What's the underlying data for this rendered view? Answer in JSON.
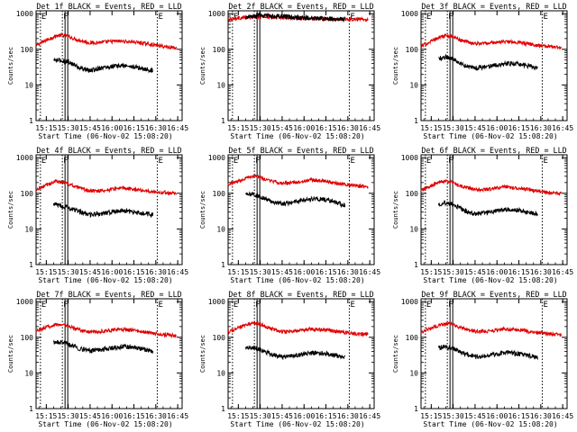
{
  "chart_data": [
    {
      "type": "line",
      "title": "Det 1f BLACK = Events, RED = LLD",
      "xlabel": "Start Time (06-Nov-02 15:08:20)",
      "ylabel": "Counts/sec",
      "x_ticks": [
        "15:15",
        "15:30",
        "15:45",
        "16:00",
        "16:15",
        "16:30",
        "16:45"
      ],
      "y_ticks": [
        "1",
        "10",
        "100",
        "1000"
      ],
      "y_scale": "log",
      "ylim": [
        1,
        1200
      ],
      "xlim": [
        "15:08",
        "16:48"
      ],
      "markers": [
        {
          "label": "E",
          "x": "15:11"
        },
        {
          "label": "F",
          "x": "15:26"
        },
        {
          "label": "E",
          "x": "16:31"
        }
      ],
      "series": [
        {
          "color": "#e00000",
          "x": [
            "15:08",
            "15:15",
            "15:22",
            "15:28",
            "15:35",
            "15:45",
            "15:55",
            "16:05",
            "16:15",
            "16:25",
            "16:35",
            "16:44"
          ],
          "y": [
            130,
            180,
            240,
            250,
            190,
            150,
            160,
            170,
            160,
            140,
            120,
            110
          ]
        },
        {
          "color": "#000000",
          "x": [
            "15:20",
            "15:25",
            "15:30",
            "15:38",
            "15:45",
            "15:52",
            "16:00",
            "16:08",
            "16:15",
            "16:22",
            "16:28"
          ],
          "y": [
            50,
            48,
            45,
            30,
            25,
            30,
            33,
            35,
            32,
            28,
            25
          ]
        }
      ]
    },
    {
      "type": "line",
      "title": "Det 2f BLACK = Events, RED = LLD",
      "xlabel": "Start Time (06-Nov-02 15:08:20)",
      "ylabel": "Counts/sec",
      "x_ticks": [
        "15:15",
        "15:30",
        "15:45",
        "16:00",
        "16:15",
        "16:30",
        "16:45"
      ],
      "y_ticks": [
        "1",
        "10",
        "100",
        "1000"
      ],
      "y_scale": "log",
      "ylim": [
        1,
        1200
      ],
      "xlim": [
        "15:08",
        "16:48"
      ],
      "markers": [
        {
          "label": "E",
          "x": "15:11"
        },
        {
          "label": "F",
          "x": "15:26"
        },
        {
          "label": "E",
          "x": "16:31"
        }
      ],
      "series": [
        {
          "color": "#e00000",
          "x": [
            "15:08",
            "15:20",
            "15:30",
            "15:45",
            "16:00",
            "16:15",
            "16:30",
            "16:44"
          ],
          "y": [
            700,
            780,
            820,
            780,
            730,
            710,
            700,
            700
          ]
        },
        {
          "color": "#000000",
          "x": [
            "15:20",
            "15:30",
            "15:45",
            "16:00",
            "16:15",
            "16:28"
          ],
          "y": [
            750,
            900,
            820,
            760,
            720,
            710
          ]
        }
      ]
    },
    {
      "type": "line",
      "title": "Det 3f BLACK = Events, RED = LLD",
      "xlabel": "Start Time (06-Nov-02 15:08:20)",
      "ylabel": "Counts/sec",
      "x_ticks": [
        "15:15",
        "15:30",
        "15:45",
        "16:00",
        "16:15",
        "16:30",
        "16:45"
      ],
      "y_ticks": [
        "1",
        "10",
        "100",
        "1000"
      ],
      "y_scale": "log",
      "ylim": [
        1,
        1200
      ],
      "xlim": [
        "15:08",
        "16:48"
      ],
      "markers": [
        {
          "label": "E",
          "x": "15:11"
        },
        {
          "label": "F",
          "x": "15:26"
        },
        {
          "label": "E",
          "x": "16:31"
        }
      ],
      "series": [
        {
          "color": "#e00000",
          "x": [
            "15:08",
            "15:15",
            "15:22",
            "15:28",
            "15:35",
            "15:45",
            "15:55",
            "16:05",
            "16:15",
            "16:25",
            "16:35",
            "16:44"
          ],
          "y": [
            120,
            170,
            230,
            240,
            180,
            145,
            150,
            165,
            155,
            135,
            120,
            115
          ]
        },
        {
          "color": "#000000",
          "x": [
            "15:20",
            "15:25",
            "15:30",
            "15:38",
            "15:45",
            "15:52",
            "16:00",
            "16:08",
            "16:15",
            "16:22",
            "16:28"
          ],
          "y": [
            55,
            60,
            55,
            35,
            30,
            32,
            36,
            40,
            38,
            34,
            30
          ]
        }
      ]
    },
    {
      "type": "line",
      "title": "Det 4f BLACK = Events, RED = LLD",
      "xlabel": "Start Time (06-Nov-02 15:08:20)",
      "ylabel": "Counts/sec",
      "x_ticks": [
        "15:15",
        "15:30",
        "15:45",
        "16:00",
        "16:15",
        "16:30",
        "16:45"
      ],
      "y_ticks": [
        "1",
        "10",
        "100",
        "1000"
      ],
      "y_scale": "log",
      "ylim": [
        1,
        1200
      ],
      "xlim": [
        "15:08",
        "16:48"
      ],
      "markers": [
        {
          "label": "E",
          "x": "15:11"
        },
        {
          "label": "F",
          "x": "15:26"
        },
        {
          "label": "E",
          "x": "16:31"
        }
      ],
      "series": [
        {
          "color": "#e00000",
          "x": [
            "15:08",
            "15:15",
            "15:22",
            "15:28",
            "15:35",
            "15:45",
            "15:55",
            "16:05",
            "16:15",
            "16:25",
            "16:35",
            "16:44"
          ],
          "y": [
            120,
            170,
            220,
            200,
            150,
            115,
            120,
            140,
            130,
            115,
            105,
            100
          ]
        },
        {
          "color": "#000000",
          "x": [
            "15:20",
            "15:25",
            "15:30",
            "15:38",
            "15:45",
            "15:52",
            "16:00",
            "16:08",
            "16:15",
            "16:22",
            "16:28"
          ],
          "y": [
            50,
            45,
            40,
            30,
            25,
            27,
            30,
            32,
            30,
            27,
            25
          ]
        }
      ]
    },
    {
      "type": "line",
      "title": "Det 5f BLACK = Events, RED = LLD",
      "xlabel": "Start Time (06-Nov-02 15:08:20)",
      "ylabel": "Counts/sec",
      "x_ticks": [
        "15:15",
        "15:30",
        "15:45",
        "16:00",
        "16:15",
        "16:30",
        "16:45"
      ],
      "y_ticks": [
        "1",
        "10",
        "100",
        "1000"
      ],
      "y_scale": "log",
      "ylim": [
        1,
        1200
      ],
      "xlim": [
        "15:08",
        "16:48"
      ],
      "markers": [
        {
          "label": "E",
          "x": "15:11"
        },
        {
          "label": "F",
          "x": "15:26"
        },
        {
          "label": "E",
          "x": "16:31"
        }
      ],
      "series": [
        {
          "color": "#e00000",
          "x": [
            "15:08",
            "15:15",
            "15:22",
            "15:28",
            "15:35",
            "15:45",
            "15:55",
            "16:05",
            "16:15",
            "16:25",
            "16:35",
            "16:44"
          ],
          "y": [
            180,
            220,
            290,
            300,
            230,
            190,
            200,
            240,
            220,
            180,
            160,
            150
          ]
        },
        {
          "color": "#000000",
          "x": [
            "15:20",
            "15:25",
            "15:30",
            "15:38",
            "15:45",
            "15:52",
            "16:00",
            "16:08",
            "16:15",
            "16:22",
            "16:28"
          ],
          "y": [
            90,
            95,
            80,
            60,
            50,
            55,
            65,
            70,
            65,
            55,
            45
          ]
        }
      ]
    },
    {
      "type": "line",
      "title": "Det 6f BLACK = Events, RED = LLD",
      "xlabel": "Start Time (06-Nov-02 15:08:20)",
      "ylabel": "Counts/sec",
      "x_ticks": [
        "15:15",
        "15:30",
        "15:45",
        "16:00",
        "16:15",
        "16:30",
        "16:45"
      ],
      "y_ticks": [
        "1",
        "10",
        "100",
        "1000"
      ],
      "y_scale": "log",
      "ylim": [
        1,
        1200
      ],
      "xlim": [
        "15:08",
        "16:48"
      ],
      "markers": [
        {
          "label": "E",
          "x": "15:11"
        },
        {
          "label": "F",
          "x": "15:26"
        },
        {
          "label": "E",
          "x": "16:31"
        }
      ],
      "series": [
        {
          "color": "#e00000",
          "x": [
            "15:08",
            "15:15",
            "15:22",
            "15:28",
            "15:35",
            "15:45",
            "15:55",
            "16:05",
            "16:15",
            "16:25",
            "16:35",
            "16:44"
          ],
          "y": [
            120,
            160,
            220,
            210,
            160,
            125,
            130,
            150,
            140,
            120,
            105,
            100
          ]
        },
        {
          "color": "#000000",
          "x": [
            "15:20",
            "15:25",
            "15:30",
            "15:38",
            "15:45",
            "15:52",
            "16:00",
            "16:08",
            "16:15",
            "16:22",
            "16:28"
          ],
          "y": [
            50,
            55,
            48,
            32,
            26,
            28,
            32,
            35,
            33,
            29,
            26
          ]
        }
      ]
    },
    {
      "type": "line",
      "title": "Det 7f BLACK = Events, RED = LLD",
      "xlabel": "Start Time (06-Nov-02 15:08:20)",
      "ylabel": "Counts/sec",
      "x_ticks": [
        "15:15",
        "15:30",
        "15:45",
        "16:00",
        "16:15",
        "16:30",
        "16:45"
      ],
      "y_ticks": [
        "1",
        "10",
        "100",
        "1000"
      ],
      "y_scale": "log",
      "ylim": [
        1,
        1200
      ],
      "xlim": [
        "15:08",
        "16:48"
      ],
      "markers": [
        {
          "label": "E",
          "x": "15:11"
        },
        {
          "label": "F",
          "x": "15:26"
        },
        {
          "label": "E",
          "x": "16:31"
        }
      ],
      "series": [
        {
          "color": "#e00000",
          "x": [
            "15:08",
            "15:15",
            "15:22",
            "15:28",
            "15:35",
            "15:45",
            "15:55",
            "16:05",
            "16:15",
            "16:25",
            "16:35",
            "16:44"
          ],
          "y": [
            150,
            190,
            230,
            220,
            170,
            140,
            150,
            165,
            155,
            135,
            120,
            110
          ]
        },
        {
          "color": "#000000",
          "x": [
            "15:20",
            "15:25",
            "15:30",
            "15:38",
            "15:45",
            "15:52",
            "16:00",
            "16:08",
            "16:15",
            "16:22",
            "16:28"
          ],
          "y": [
            70,
            72,
            65,
            48,
            42,
            45,
            50,
            55,
            52,
            46,
            40
          ]
        }
      ]
    },
    {
      "type": "line",
      "title": "Det 8f BLACK = Events, RED = LLD",
      "xlabel": "Start Time (06-Nov-02 15:08:20)",
      "ylabel": "Counts/sec",
      "x_ticks": [
        "15:15",
        "15:30",
        "15:45",
        "16:00",
        "16:15",
        "16:30",
        "16:45"
      ],
      "y_ticks": [
        "1",
        "10",
        "100",
        "1000"
      ],
      "y_scale": "log",
      "ylim": [
        1,
        1200
      ],
      "xlim": [
        "15:08",
        "16:48"
      ],
      "markers": [
        {
          "label": "E",
          "x": "15:11"
        },
        {
          "label": "F",
          "x": "15:26"
        },
        {
          "label": "E",
          "x": "16:31"
        }
      ],
      "series": [
        {
          "color": "#e00000",
          "x": [
            "15:08",
            "15:15",
            "15:22",
            "15:28",
            "15:35",
            "15:45",
            "15:55",
            "16:05",
            "16:15",
            "16:25",
            "16:35",
            "16:44"
          ],
          "y": [
            140,
            180,
            240,
            250,
            190,
            145,
            150,
            170,
            160,
            140,
            125,
            120
          ]
        },
        {
          "color": "#000000",
          "x": [
            "15:20",
            "15:25",
            "15:30",
            "15:38",
            "15:45",
            "15:52",
            "16:00",
            "16:08",
            "16:15",
            "16:22",
            "16:28"
          ],
          "y": [
            50,
            52,
            45,
            33,
            28,
            30,
            34,
            37,
            35,
            31,
            28
          ]
        }
      ]
    },
    {
      "type": "line",
      "title": "Det 9f BLACK = Events, RED = LLD",
      "xlabel": "Start Time (06-Nov-02 15:08:20)",
      "ylabel": "Counts/sec",
      "x_ticks": [
        "15:15",
        "15:30",
        "15:45",
        "16:00",
        "16:15",
        "16:30",
        "16:45"
      ],
      "y_ticks": [
        "1",
        "10",
        "100",
        "1000"
      ],
      "y_scale": "log",
      "ylim": [
        1,
        1200
      ],
      "xlim": [
        "15:08",
        "16:48"
      ],
      "markers": [
        {
          "label": "E",
          "x": "15:11"
        },
        {
          "label": "F",
          "x": "15:26"
        },
        {
          "label": "E",
          "x": "16:31"
        }
      ],
      "series": [
        {
          "color": "#e00000",
          "x": [
            "15:08",
            "15:15",
            "15:22",
            "15:28",
            "15:35",
            "15:45",
            "15:55",
            "16:05",
            "16:15",
            "16:25",
            "16:35",
            "16:44"
          ],
          "y": [
            140,
            180,
            230,
            240,
            185,
            145,
            150,
            170,
            160,
            140,
            125,
            115
          ]
        },
        {
          "color": "#000000",
          "x": [
            "15:20",
            "15:25",
            "15:30",
            "15:38",
            "15:45",
            "15:52",
            "16:00",
            "16:08",
            "16:15",
            "16:22",
            "16:28"
          ],
          "y": [
            50,
            55,
            48,
            33,
            28,
            30,
            34,
            37,
            34,
            30,
            27
          ]
        }
      ]
    }
  ]
}
